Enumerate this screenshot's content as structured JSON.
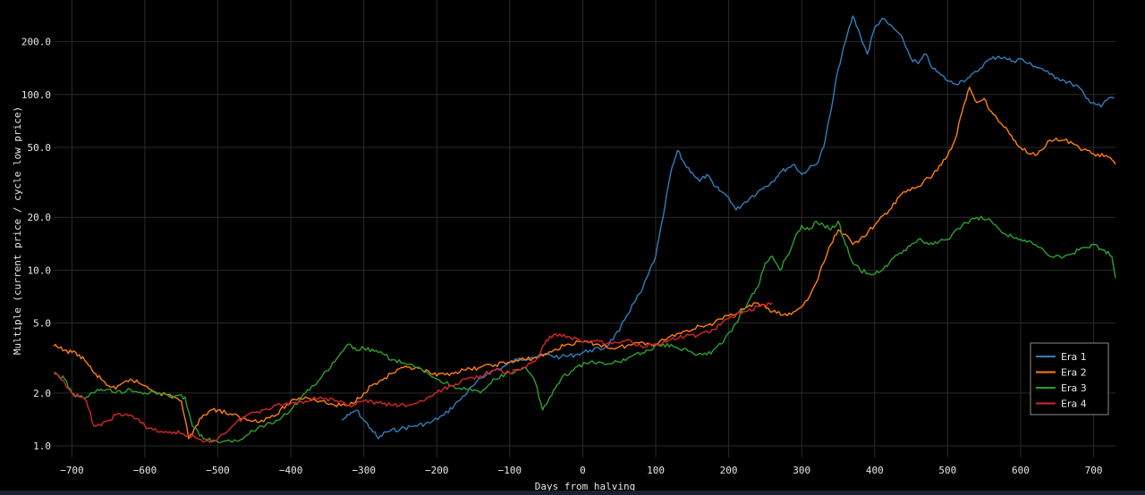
{
  "chart_data": {
    "type": "line",
    "title": "",
    "xlabel": "Days from halving",
    "ylabel": "Multiple (current price / cycle low price)",
    "x_scale": "linear",
    "y_scale": "log",
    "xlim": [
      -725,
      730
    ],
    "ylim": [
      0.9,
      300
    ],
    "grid": true,
    "legend_placement": "bottom-right",
    "background": "#000000",
    "x_ticks": [
      -700,
      -600,
      -500,
      -400,
      -300,
      -200,
      -100,
      0,
      100,
      200,
      300,
      400,
      500,
      600,
      700
    ],
    "x_tick_labels": [
      "−700",
      "−600",
      "−500",
      "−400",
      "−300",
      "−200",
      "−100",
      "0",
      "100",
      "200",
      "300",
      "400",
      "500",
      "600",
      "700"
    ],
    "y_ticks": [
      1,
      2,
      5,
      10,
      20,
      50,
      100,
      200
    ],
    "y_tick_labels": [
      "1.0",
      "2.0",
      "5.0",
      "10.0",
      "20.0",
      "50.0",
      "100.0",
      "200.0"
    ],
    "series": [
      {
        "name": "Era 1",
        "color": "#2f7ebc",
        "x": [
          -330,
          -320,
          -310,
          -300,
          -290,
          -280,
          -270,
          -250,
          -230,
          -210,
          -190,
          -170,
          -150,
          -130,
          -110,
          -90,
          -70,
          -50,
          -30,
          -10,
          10,
          30,
          50,
          60,
          70,
          80,
          90,
          100,
          110,
          120,
          130,
          140,
          150,
          160,
          170,
          180,
          190,
          200,
          210,
          220,
          230,
          240,
          250,
          260,
          270,
          280,
          290,
          300,
          310,
          320,
          330,
          340,
          350,
          360,
          370,
          380,
          390,
          400,
          410,
          420,
          430,
          440,
          450,
          460,
          470,
          480,
          490,
          500,
          510,
          520,
          530,
          540,
          550,
          560,
          570,
          580,
          590,
          600,
          610,
          620,
          630,
          640,
          650,
          660,
          670,
          680,
          690,
          700,
          710,
          720,
          728
        ],
        "y": [
          1.4,
          1.5,
          1.6,
          1.4,
          1.25,
          1.1,
          1.2,
          1.25,
          1.3,
          1.35,
          1.5,
          1.8,
          2.2,
          2.6,
          2.8,
          3.1,
          3.2,
          3.3,
          3.2,
          3.3,
          3.5,
          3.6,
          4.5,
          5.5,
          6.5,
          7.5,
          9.5,
          12,
          20,
          35,
          48,
          40,
          36,
          32,
          35,
          30,
          28,
          26,
          22,
          24,
          26,
          28,
          30,
          32,
          36,
          38,
          40,
          35,
          38,
          40,
          50,
          80,
          140,
          200,
          280,
          220,
          170,
          240,
          270,
          250,
          230,
          200,
          160,
          150,
          170,
          140,
          130,
          120,
          115,
          120,
          125,
          135,
          150,
          160,
          165,
          160,
          155,
          160,
          150,
          145,
          140,
          130,
          125,
          120,
          115,
          110,
          95,
          90,
          85,
          95,
          95
        ]
      },
      {
        "name": "Era 2",
        "color": "#ff7f0e",
        "x": [
          -725,
          -710,
          -700,
          -690,
          -680,
          -670,
          -660,
          -650,
          -640,
          -620,
          -600,
          -580,
          -560,
          -550,
          -540,
          -530,
          -520,
          -510,
          -500,
          -480,
          -460,
          -440,
          -420,
          -400,
          -380,
          -360,
          -340,
          -320,
          -300,
          -290,
          -280,
          -260,
          -240,
          -220,
          -200,
          -180,
          -160,
          -140,
          -120,
          -100,
          -80,
          -60,
          -40,
          -20,
          0,
          20,
          40,
          60,
          80,
          100,
          120,
          140,
          160,
          180,
          200,
          220,
          240,
          260,
          280,
          300,
          310,
          320,
          330,
          340,
          350,
          360,
          370,
          380,
          400,
          420,
          440,
          460,
          480,
          500,
          510,
          520,
          530,
          540,
          550,
          560,
          570,
          580,
          590,
          600,
          620,
          640,
          660,
          680,
          700,
          720,
          730
        ],
        "y": [
          3.7,
          3.5,
          3.4,
          3.3,
          3.0,
          2.6,
          2.4,
          2.2,
          2.1,
          2.4,
          2.2,
          2.0,
          1.9,
          1.8,
          1.1,
          1.3,
          1.5,
          1.6,
          1.6,
          1.5,
          1.4,
          1.4,
          1.5,
          1.8,
          1.9,
          1.8,
          1.7,
          1.7,
          2.0,
          2.2,
          2.3,
          2.6,
          2.8,
          2.7,
          2.5,
          2.6,
          2.7,
          2.8,
          2.9,
          3.0,
          3.1,
          3.2,
          3.5,
          3.8,
          3.9,
          3.8,
          3.6,
          3.7,
          3.9,
          3.8,
          4.2,
          4.5,
          4.8,
          5.0,
          5.5,
          6.0,
          6.5,
          5.8,
          5.5,
          6.2,
          7.0,
          8.5,
          11,
          14,
          17,
          16,
          14,
          15,
          18,
          22,
          28,
          30,
          35,
          45,
          55,
          80,
          110,
          90,
          95,
          80,
          70,
          65,
          55,
          50,
          45,
          55,
          55,
          50,
          46,
          44,
          40
        ]
      },
      {
        "name": "Era 3",
        "color": "#2ca02c",
        "x": [
          -725,
          -710,
          -700,
          -690,
          -680,
          -670,
          -660,
          -650,
          -640,
          -620,
          -600,
          -580,
          -560,
          -545,
          -535,
          -520,
          -500,
          -480,
          -460,
          -440,
          -420,
          -400,
          -380,
          -360,
          -340,
          -320,
          -310,
          -300,
          -280,
          -260,
          -240,
          -220,
          -200,
          -180,
          -160,
          -140,
          -120,
          -100,
          -80,
          -65,
          -55,
          -45,
          -30,
          -10,
          10,
          30,
          50,
          70,
          90,
          110,
          130,
          150,
          170,
          190,
          210,
          230,
          240,
          250,
          260,
          270,
          280,
          290,
          300,
          310,
          320,
          330,
          340,
          350,
          360,
          370,
          380,
          400,
          420,
          440,
          460,
          480,
          500,
          520,
          540,
          560,
          580,
          600,
          620,
          640,
          660,
          680,
          700,
          715,
          725,
          730
        ],
        "y": [
          2.6,
          2.4,
          2.0,
          1.9,
          1.9,
          2.0,
          2.1,
          2.1,
          2.0,
          2.1,
          2.0,
          2.0,
          1.9,
          1.9,
          1.3,
          1.1,
          1.05,
          1.05,
          1.15,
          1.3,
          1.4,
          1.6,
          2.0,
          2.4,
          3.0,
          3.8,
          3.5,
          3.6,
          3.4,
          3.1,
          2.9,
          2.7,
          2.4,
          2.2,
          2.1,
          2.0,
          2.4,
          2.6,
          2.8,
          2.3,
          1.6,
          1.9,
          2.4,
          2.8,
          3.0,
          2.9,
          3.0,
          3.3,
          3.5,
          3.8,
          3.6,
          3.4,
          3.3,
          3.8,
          5.0,
          7.0,
          8.0,
          11,
          12,
          10,
          12,
          15,
          18,
          17,
          19,
          18,
          17,
          19,
          14,
          11,
          10,
          9.5,
          11,
          13,
          15,
          14,
          15,
          18,
          20,
          19,
          16,
          15,
          14,
          12,
          12,
          13,
          14,
          13,
          12,
          9
        ]
      },
      {
        "name": "Era 4",
        "color": "#d62728",
        "x": [
          -725,
          -710,
          -700,
          -690,
          -680,
          -670,
          -660,
          -650,
          -640,
          -620,
          -600,
          -580,
          -560,
          -540,
          -520,
          -500,
          -480,
          -460,
          -440,
          -420,
          -400,
          -380,
          -360,
          -340,
          -320,
          -300,
          -280,
          -260,
          -240,
          -220,
          -200,
          -180,
          -160,
          -140,
          -120,
          -100,
          -80,
          -60,
          -50,
          -40,
          -20,
          0,
          20,
          40,
          60,
          80,
          100,
          120,
          140,
          160,
          180,
          200,
          220,
          240,
          260
        ],
        "y": [
          2.6,
          2.3,
          2.0,
          1.9,
          1.8,
          1.3,
          1.3,
          1.4,
          1.5,
          1.5,
          1.3,
          1.2,
          1.2,
          1.15,
          1.05,
          1.1,
          1.3,
          1.5,
          1.6,
          1.7,
          1.75,
          1.8,
          1.9,
          1.8,
          1.7,
          1.8,
          1.75,
          1.7,
          1.7,
          1.8,
          2.0,
          2.2,
          2.4,
          2.5,
          2.7,
          2.6,
          2.8,
          3.2,
          4.0,
          4.3,
          4.2,
          3.9,
          4.0,
          3.8,
          4.0,
          3.7,
          3.8,
          4.0,
          4.2,
          4.3,
          4.6,
          5.3,
          5.8,
          6.2,
          6.5
        ]
      }
    ]
  }
}
